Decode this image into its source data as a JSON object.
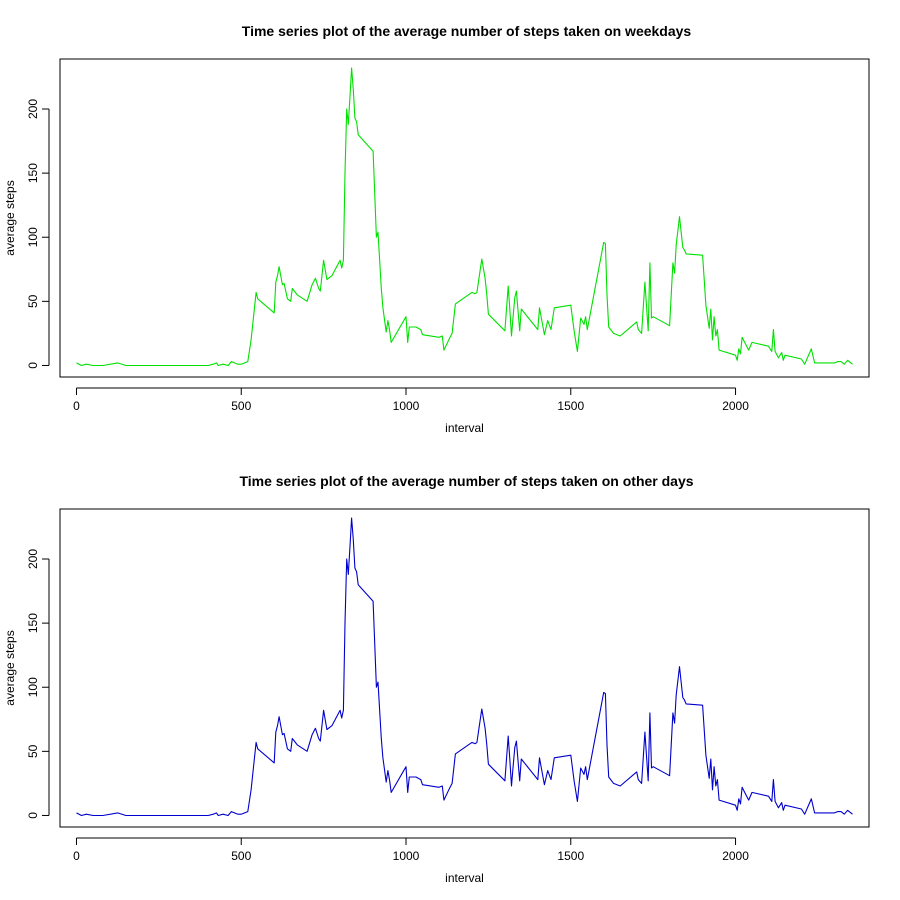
{
  "chart_data": [
    {
      "type": "line",
      "title": "Time series plot of the average number of steps taken on weekdays",
      "xlabel": "interval",
      "ylabel": "average steps",
      "xlim": [
        -50,
        2405
      ],
      "ylim": [
        -9,
        239
      ],
      "x_ticks": [
        "0",
        "500",
        "1000",
        "1500",
        "2000"
      ],
      "y_ticks": [
        "0",
        "50",
        "100",
        "150",
        "200"
      ],
      "grid": false,
      "legend": "none",
      "series": [
        {
          "color": "#00e000",
          "x": [
            0,
            15,
            30,
            50,
            80,
            125,
            150,
            200,
            250,
            300,
            350,
            400,
            415,
            425,
            430,
            445,
            460,
            470,
            490,
            500,
            520,
            530,
            545,
            550,
            600,
            605,
            610,
            615,
            625,
            630,
            640,
            650,
            655,
            670,
            700,
            715,
            725,
            735,
            740,
            750,
            760,
            775,
            800,
            805,
            810,
            815,
            820,
            825,
            830,
            835,
            840,
            845,
            850,
            855,
            900,
            910,
            915,
            925,
            930,
            940,
            945,
            950,
            955,
            1000,
            1005,
            1010,
            1030,
            1045,
            1050,
            1100,
            1110,
            1115,
            1130,
            1140,
            1150,
            1200,
            1210,
            1215,
            1230,
            1240,
            1245,
            1250,
            1300,
            1310,
            1315,
            1320,
            1325,
            1330,
            1335,
            1345,
            1350,
            1400,
            1405,
            1410,
            1420,
            1430,
            1440,
            1450,
            1500,
            1510,
            1520,
            1530,
            1540,
            1545,
            1550,
            1600,
            1605,
            1610,
            1615,
            1630,
            1650,
            1700,
            1705,
            1715,
            1725,
            1735,
            1740,
            1745,
            1750,
            1800,
            1810,
            1815,
            1820,
            1830,
            1840,
            1845,
            1850,
            1900,
            1910,
            1920,
            1925,
            1930,
            1935,
            1940,
            1945,
            1950,
            2000,
            2005,
            2010,
            2015,
            2020,
            2030,
            2040,
            2050,
            2100,
            2110,
            2115,
            2120,
            2130,
            2140,
            2145,
            2150,
            2200,
            2210,
            2220,
            2225,
            2230,
            2240,
            2250,
            2300,
            2310,
            2320,
            2330,
            2340,
            2355
          ],
          "values": [
            2,
            0,
            1,
            0,
            0,
            2,
            0,
            0,
            0,
            0,
            0,
            0,
            1,
            2,
            0,
            1,
            0,
            3,
            1,
            1,
            3,
            20,
            57,
            52,
            41,
            65,
            70,
            77,
            63,
            64,
            52,
            50,
            60,
            55,
            50,
            63,
            68,
            60,
            58,
            82,
            67,
            70,
            82,
            76,
            82,
            150,
            200,
            188,
            210,
            232,
            215,
            193,
            190,
            180,
            167,
            100,
            104,
            60,
            45,
            26,
            35,
            28,
            18,
            38,
            18,
            30,
            30,
            28,
            24,
            22,
            23,
            12,
            20,
            25,
            48,
            57,
            56,
            57,
            83,
            68,
            56,
            40,
            27,
            62,
            44,
            23,
            38,
            53,
            58,
            27,
            44,
            28,
            45,
            38,
            24,
            35,
            28,
            45,
            47,
            27,
            11,
            37,
            32,
            38,
            28,
            96,
            95,
            55,
            30,
            25,
            23,
            34,
            28,
            25,
            65,
            27,
            80,
            37,
            38,
            31,
            80,
            72,
            94,
            116,
            92,
            90,
            87,
            86,
            47,
            29,
            44,
            20,
            38,
            23,
            28,
            12,
            8,
            4,
            13,
            9,
            22,
            17,
            12,
            18,
            15,
            11,
            28,
            11,
            6,
            10,
            4,
            8,
            5,
            1,
            7,
            10,
            13,
            2,
            2,
            2,
            3,
            3,
            1,
            4,
            1
          ]
        }
      ]
    },
    {
      "type": "line",
      "title": "Time series plot of the average number of steps taken on other days",
      "xlabel": "interval",
      "ylabel": "average steps",
      "xlim": [
        -50,
        2405
      ],
      "ylim": [
        -9,
        239
      ],
      "x_ticks": [
        "0",
        "500",
        "1000",
        "1500",
        "2000"
      ],
      "y_ticks": [
        "0",
        "50",
        "100",
        "150",
        "200"
      ],
      "grid": false,
      "legend": "none",
      "series": [
        {
          "color": "#0000cc",
          "x": [
            0,
            15,
            30,
            50,
            80,
            125,
            150,
            200,
            250,
            300,
            350,
            400,
            415,
            425,
            430,
            445,
            460,
            470,
            490,
            500,
            520,
            530,
            545,
            550,
            600,
            605,
            610,
            615,
            625,
            630,
            640,
            650,
            655,
            670,
            700,
            715,
            725,
            735,
            740,
            750,
            760,
            775,
            800,
            805,
            810,
            815,
            820,
            825,
            830,
            835,
            840,
            845,
            850,
            855,
            900,
            910,
            915,
            925,
            930,
            940,
            945,
            950,
            955,
            1000,
            1005,
            1010,
            1030,
            1045,
            1050,
            1100,
            1110,
            1115,
            1130,
            1140,
            1150,
            1200,
            1210,
            1215,
            1230,
            1240,
            1245,
            1250,
            1300,
            1310,
            1315,
            1320,
            1325,
            1330,
            1335,
            1345,
            1350,
            1400,
            1405,
            1410,
            1420,
            1430,
            1440,
            1450,
            1500,
            1510,
            1520,
            1530,
            1540,
            1545,
            1550,
            1600,
            1605,
            1610,
            1615,
            1630,
            1650,
            1700,
            1705,
            1715,
            1725,
            1735,
            1740,
            1745,
            1750,
            1800,
            1810,
            1815,
            1820,
            1830,
            1840,
            1845,
            1850,
            1900,
            1910,
            1920,
            1925,
            1930,
            1935,
            1940,
            1945,
            1950,
            2000,
            2005,
            2010,
            2015,
            2020,
            2030,
            2040,
            2050,
            2100,
            2110,
            2115,
            2120,
            2130,
            2140,
            2145,
            2150,
            2200,
            2210,
            2220,
            2225,
            2230,
            2240,
            2250,
            2300,
            2310,
            2320,
            2330,
            2340,
            2355
          ],
          "values": [
            2,
            0,
            1,
            0,
            0,
            2,
            0,
            0,
            0,
            0,
            0,
            0,
            1,
            2,
            0,
            1,
            0,
            3,
            1,
            1,
            3,
            20,
            57,
            52,
            41,
            65,
            70,
            77,
            63,
            64,
            52,
            50,
            60,
            55,
            50,
            63,
            68,
            60,
            58,
            82,
            67,
            70,
            82,
            76,
            82,
            150,
            200,
            188,
            210,
            232,
            215,
            193,
            190,
            180,
            167,
            100,
            104,
            60,
            45,
            26,
            35,
            28,
            18,
            38,
            18,
            30,
            30,
            28,
            24,
            22,
            23,
            12,
            20,
            25,
            48,
            57,
            56,
            57,
            83,
            68,
            56,
            40,
            27,
            62,
            44,
            23,
            38,
            53,
            58,
            27,
            44,
            28,
            45,
            38,
            24,
            35,
            28,
            45,
            47,
            27,
            11,
            37,
            32,
            38,
            28,
            96,
            95,
            55,
            30,
            25,
            23,
            34,
            28,
            25,
            65,
            27,
            80,
            37,
            38,
            31,
            80,
            72,
            94,
            116,
            92,
            90,
            87,
            86,
            47,
            29,
            44,
            20,
            38,
            23,
            28,
            12,
            8,
            4,
            13,
            9,
            22,
            17,
            12,
            18,
            15,
            11,
            28,
            11,
            6,
            10,
            4,
            8,
            5,
            1,
            7,
            10,
            13,
            2,
            2,
            2,
            3,
            3,
            1,
            4,
            1
          ]
        }
      ]
    }
  ]
}
